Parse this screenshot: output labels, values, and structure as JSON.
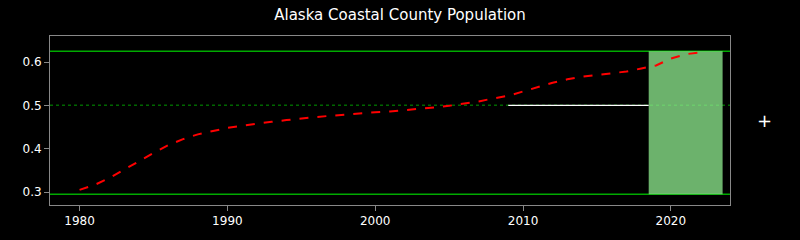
{
  "chart_data": {
    "type": "line",
    "title": "Alaska Coastal County Population",
    "x": [
      1980,
      1981,
      1982,
      1983,
      1984,
      1985,
      1986,
      1987,
      1988,
      1989,
      1990,
      1991,
      1992,
      1993,
      1994,
      1995,
      1996,
      1997,
      1998,
      1999,
      2000,
      2001,
      2002,
      2003,
      2004,
      2005,
      2006,
      2007,
      2008,
      2009,
      2010,
      2011,
      2012,
      2013,
      2014,
      2015,
      2016,
      2017,
      2018,
      2019,
      2020,
      2021,
      2022
    ],
    "values": [
      0.305,
      0.316,
      0.332,
      0.352,
      0.372,
      0.39,
      0.408,
      0.422,
      0.433,
      0.441,
      0.448,
      0.453,
      0.458,
      0.462,
      0.466,
      0.47,
      0.473,
      0.476,
      0.479,
      0.481,
      0.484,
      0.486,
      0.489,
      0.491,
      0.495,
      0.499,
      0.504,
      0.509,
      0.516,
      0.522,
      0.532,
      0.542,
      0.552,
      0.56,
      0.566,
      0.57,
      0.574,
      0.578,
      0.585,
      0.592,
      0.608,
      0.618,
      0.622
    ],
    "color": "#ff0000",
    "line_style": "dashed",
    "xlim": [
      1978,
      2024
    ],
    "xticks": [
      1980,
      1990,
      2000,
      2010,
      2020
    ],
    "ylim": [
      0.27,
      0.66
    ],
    "yticks": [
      0.3,
      0.4,
      0.5,
      0.6
    ],
    "grid": false,
    "shade": {
      "x": [
        2018.5,
        2023.5
      ],
      "y": [
        0.295,
        0.625
      ],
      "color": "#90EE90"
    },
    "hlines": [
      {
        "y": 0.625,
        "color": "#00aa00",
        "line_style": "solid"
      },
      {
        "y": 0.295,
        "color": "#00aa00",
        "line_style": "solid"
      },
      {
        "y": 0.5,
        "color": "#006600",
        "line_style": "dotted"
      }
    ],
    "segments": [
      {
        "x": [
          2009,
          2018.5
        ],
        "y": 0.5,
        "color": "#ffffff",
        "line_style": "solid"
      }
    ],
    "annotations": [
      {
        "text": "+"
      }
    ]
  }
}
